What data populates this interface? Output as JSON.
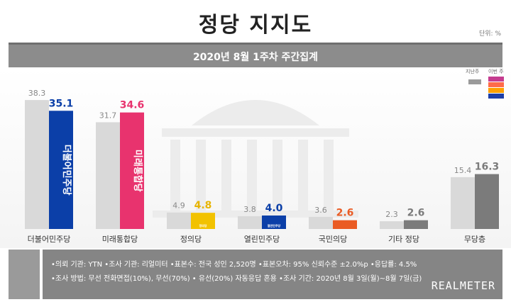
{
  "title": "정당 지지도",
  "unit": "단위: %",
  "subtitle": "2020년 8월 1주차 주간집계",
  "legend": {
    "prev_label": "지난주",
    "curr_label": "이번 주",
    "prev_color": "#9a9a9a",
    "curr_colors": [
      "#c53c90",
      "#ff6b4a",
      "#ffa000",
      "#1d3fa8"
    ]
  },
  "chart_data": {
    "type": "bar",
    "ylabel": "",
    "ylim": [
      0,
      40
    ],
    "categories": [
      "더불어민주당",
      "미래통합당",
      "정의당",
      "열린민주당",
      "국민의당",
      "기타 정당",
      "무당층"
    ],
    "series": [
      {
        "name": "지난주",
        "values": [
          38.3,
          31.7,
          4.9,
          3.8,
          3.6,
          2.3,
          15.4
        ]
      },
      {
        "name": "이번 주",
        "values": [
          35.1,
          34.6,
          4.8,
          4.0,
          2.6,
          2.6,
          16.3
        ]
      }
    ],
    "prev_labels": [
      "38.3",
      "31.7",
      "4.9",
      "3.8",
      "3.6",
      "2.3",
      "15.4"
    ],
    "curr_labels": [
      "35.1",
      "34.6",
      "4.8",
      "4.0",
      "2.6",
      "2.6",
      "16.3"
    ],
    "bar_colors": [
      "#0b3fa8",
      "#e8336e",
      "#f2c200",
      "#0b3fa8",
      "#ea5b24",
      "#7b7b7b",
      "#7b7b7b"
    ],
    "label_colors": [
      "#0b3fa8",
      "#e8336e",
      "#e7b400",
      "#0b3fa8",
      "#ea5b24",
      "#7b7b7b",
      "#7b7b7b"
    ],
    "logos": [
      "더불어민주당",
      "미래통합당",
      "정의당",
      "열린민주당",
      "",
      "",
      ""
    ]
  },
  "footer": {
    "line1": "•의뢰 기관: YTN •조사 기관: 리얼미터 •표본수: 전국 성인 2,520명 •표본오차: 95% 신뢰수준 ±2.0%p •응답률: 4.5%",
    "line2": "•조사 방법: 무선 전화면접(10%), 무선(70%) • 유선(20%) 자동응답 혼용 •조사 기간: 2020년 8월 3일(월)~8월 7일(금)",
    "brand": "REALMETER"
  }
}
